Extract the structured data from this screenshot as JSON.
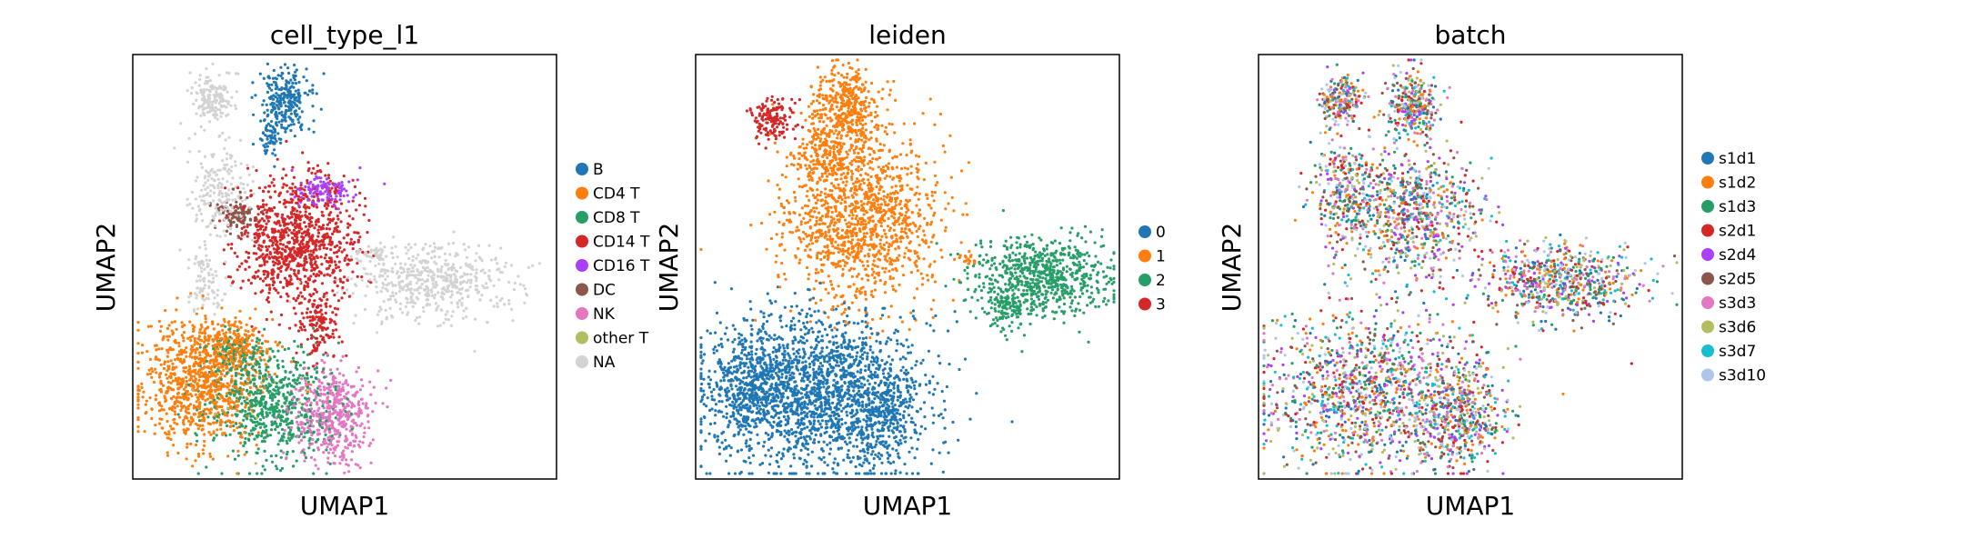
{
  "chart_data": [
    {
      "type": "scatter",
      "title": "cell_type_l1",
      "xlabel": "UMAP1",
      "ylabel": "UMAP2",
      "ticks": "none",
      "legend": "right",
      "grid": false,
      "series": [
        {
          "name": "B",
          "color": "#1f77b4"
        },
        {
          "name": "CD4 T",
          "color": "#ff7f0e"
        },
        {
          "name": "CD8 T",
          "color": "#279e68"
        },
        {
          "name": "CD14 T",
          "color": "#d62728"
        },
        {
          "name": "CD16 T",
          "color": "#aa40fc"
        },
        {
          "name": "DC",
          "color": "#8c564b"
        },
        {
          "name": "NK",
          "color": "#e377c2"
        },
        {
          "name": "other T",
          "color": "#b5bd61"
        },
        {
          "name": "NA",
          "color": "#d3d3d3"
        }
      ]
    },
    {
      "type": "scatter",
      "title": "leiden",
      "xlabel": "UMAP1",
      "ylabel": "UMAP2",
      "ticks": "none",
      "legend": "right",
      "grid": false,
      "series": [
        {
          "name": "0",
          "color": "#1f77b4"
        },
        {
          "name": "1",
          "color": "#ff7f0e"
        },
        {
          "name": "2",
          "color": "#279e68"
        },
        {
          "name": "3",
          "color": "#d62728"
        }
      ]
    },
    {
      "type": "scatter",
      "title": "batch",
      "xlabel": "UMAP1",
      "ylabel": "UMAP2",
      "ticks": "none",
      "legend": "right",
      "grid": false,
      "series": [
        {
          "name": "s1d1",
          "color": "#1f77b4"
        },
        {
          "name": "s1d2",
          "color": "#ff7f0e"
        },
        {
          "name": "s1d3",
          "color": "#279e68"
        },
        {
          "name": "s2d1",
          "color": "#d62728"
        },
        {
          "name": "s2d4",
          "color": "#aa40fc"
        },
        {
          "name": "s2d5",
          "color": "#8c564b"
        },
        {
          "name": "s3d3",
          "color": "#e377c2"
        },
        {
          "name": "s3d6",
          "color": "#b5bd61"
        },
        {
          "name": "s3d7",
          "color": "#17becf"
        },
        {
          "name": "s3d10",
          "color": "#aec7e8"
        }
      ]
    }
  ]
}
